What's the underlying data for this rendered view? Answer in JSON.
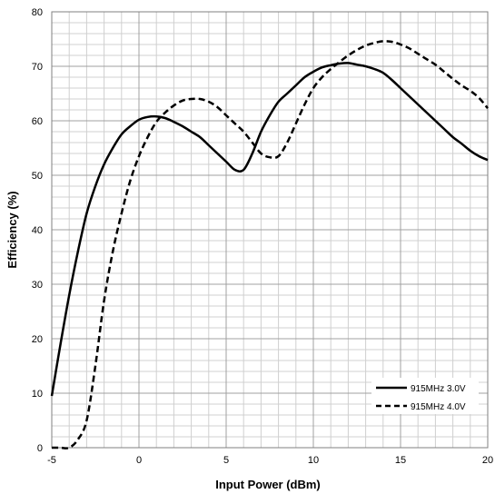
{
  "chart_data": {
    "type": "line",
    "xlabel": "Input Power (dBm)",
    "ylabel": "Efficiency (%)",
    "xlim": [
      -5,
      20
    ],
    "ylim": [
      0,
      80
    ],
    "x_ticks": [
      -5,
      0,
      5,
      10,
      15,
      20
    ],
    "y_ticks": [
      0,
      10,
      20,
      30,
      40,
      50,
      60,
      70,
      80
    ],
    "x_minor_step": 1,
    "y_minor_step": 2,
    "grid": true,
    "legend_position": "bottom-right",
    "series": [
      {
        "name": "915MHz 3.0V",
        "style": "solid",
        "color": "#000000",
        "x": [
          -5,
          -4.5,
          -4,
          -3.5,
          -3,
          -2.5,
          -2,
          -1.5,
          -1,
          -0.5,
          0,
          0.5,
          1,
          1.5,
          2,
          2.5,
          3,
          3.5,
          4,
          4.5,
          5,
          5.5,
          6,
          6.5,
          7,
          7.5,
          8,
          8.5,
          9,
          9.5,
          10,
          10.5,
          11,
          11.5,
          12,
          12.5,
          13,
          13.5,
          14,
          14.5,
          15,
          15.5,
          16,
          16.5,
          17,
          17.5,
          18,
          18.5,
          19,
          19.5,
          20
        ],
        "y": [
          9.5,
          19,
          28,
          36,
          43,
          48,
          52,
          55,
          57.5,
          59,
          60.2,
          60.7,
          60.8,
          60.5,
          59.8,
          59,
          58,
          57,
          55.5,
          54,
          52.5,
          51,
          51,
          54,
          58,
          61,
          63.5,
          65,
          66.5,
          68,
          69,
          69.8,
          70.2,
          70.5,
          70.6,
          70.3,
          70,
          69.5,
          68.8,
          67.5,
          66,
          64.5,
          63,
          61.5,
          60,
          58.5,
          57,
          55.8,
          54.5,
          53.5,
          52.8
        ]
      },
      {
        "name": "915MHz 4.0V",
        "style": "dashed",
        "color": "#000000",
        "x": [
          -5,
          -4.5,
          -4,
          -3.5,
          -3,
          -2.5,
          -2,
          -1.5,
          -1,
          -0.5,
          0,
          0.5,
          1,
          1.5,
          2,
          2.5,
          3,
          3.5,
          4,
          4.5,
          5,
          5.5,
          6,
          6.5,
          7,
          7.5,
          8,
          8.5,
          9,
          9.5,
          10,
          10.5,
          11,
          11.5,
          12,
          12.5,
          13,
          13.5,
          14,
          14.5,
          15,
          15.5,
          16,
          16.5,
          17,
          17.5,
          18,
          18.5,
          19,
          19.5,
          20
        ],
        "y": [
          0,
          0,
          0,
          1.5,
          5,
          15,
          27,
          36,
          43,
          49,
          53.5,
          57,
          59.8,
          61.5,
          62.8,
          63.7,
          64,
          64,
          63.5,
          62.5,
          61,
          59.5,
          58,
          56,
          54,
          53.3,
          53.5,
          56,
          59.5,
          63,
          66,
          68,
          69.5,
          70.8,
          72,
          73,
          73.8,
          74.3,
          74.6,
          74.5,
          74,
          73.3,
          72.3,
          71.3,
          70.3,
          69,
          67.7,
          66.5,
          65.5,
          64.2,
          62.3
        ]
      }
    ]
  }
}
